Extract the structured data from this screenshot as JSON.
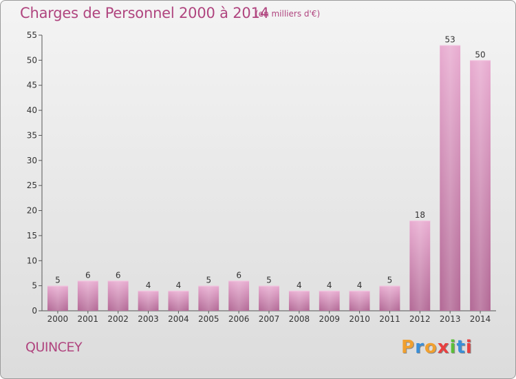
{
  "header": {
    "title": "Charges de Personnel 2000 à 2014",
    "subtitle": "(en milliers d'€)"
  },
  "footer": {
    "place": "QUINCEY",
    "logo": "Proxiti"
  },
  "colors": {
    "title": "#b0457f",
    "bar_light": "#e6a8cd",
    "bar_dark": "#b36a96",
    "axis": "#555555",
    "logo_letters": [
      "#f0a030",
      "#3a8fd8",
      "#f0a030",
      "#e84040",
      "#5cbf3a",
      "#3a8fd8",
      "#e84040"
    ]
  },
  "chart_data": {
    "type": "bar",
    "title": "Charges de Personnel 2000 à 2014",
    "subtitle": "(en milliers d'€)",
    "xlabel": "",
    "ylabel": "",
    "categories": [
      "2000",
      "2001",
      "2002",
      "2003",
      "2004",
      "2005",
      "2006",
      "2007",
      "2008",
      "2009",
      "2010",
      "2011",
      "2012",
      "2013",
      "2014"
    ],
    "values": [
      5,
      6,
      6,
      4,
      4,
      5,
      6,
      5,
      4,
      4,
      4,
      5,
      18,
      53,
      50
    ],
    "ylim": [
      0,
      55
    ],
    "yticks": [
      0,
      5,
      10,
      15,
      20,
      25,
      30,
      35,
      40,
      45,
      50,
      55
    ],
    "grid": false,
    "data_labels": true
  }
}
